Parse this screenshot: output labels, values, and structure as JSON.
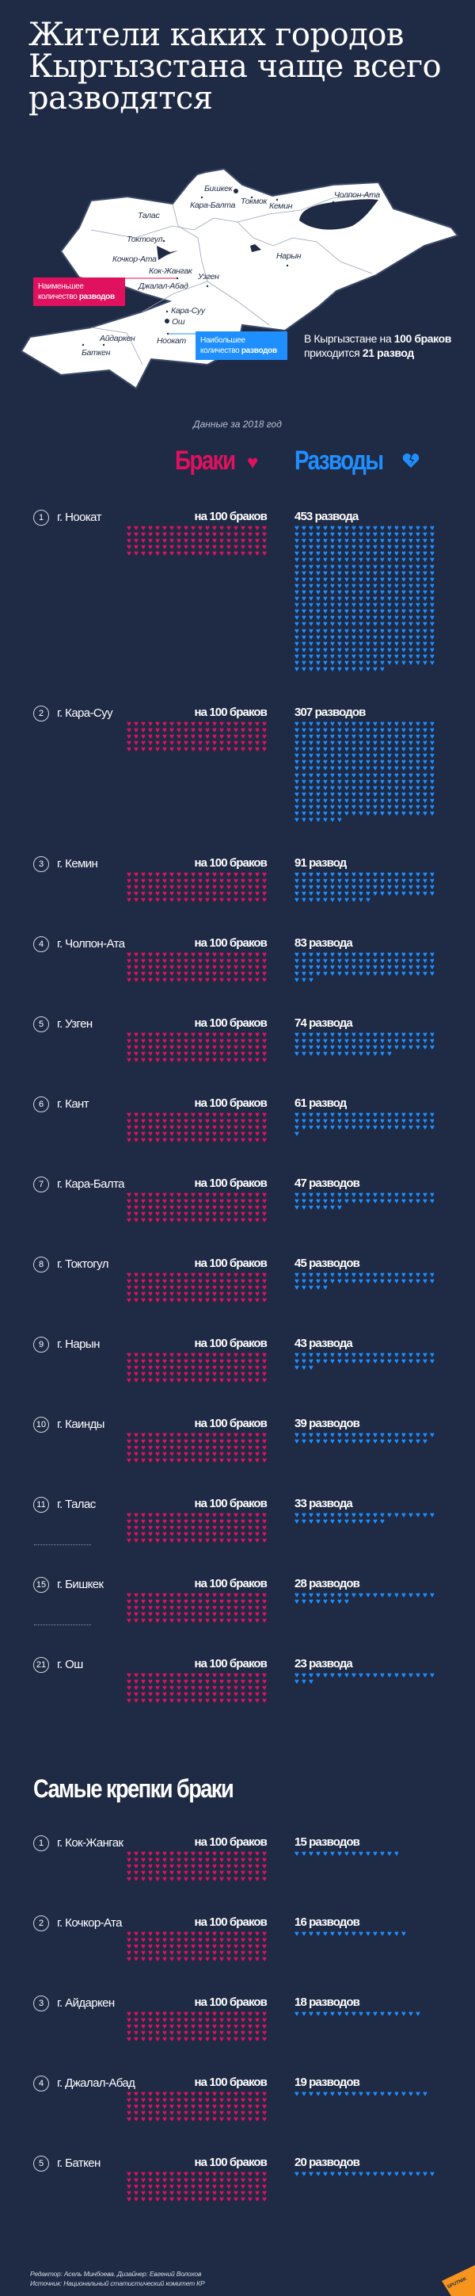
{
  "title": {
    "line1": "Жители каких городов",
    "line2": "Кыргызстана чаще всего",
    "line3": "разводятся"
  },
  "map": {
    "cities": [
      "Каинды",
      "Кант",
      "Бишкек",
      "Кара-Балта",
      "Токмок",
      "Кемин",
      "Чолпон-Ата",
      "Талас",
      "Токтогул",
      "Кочкор-Ата",
      "Кок-Жангак",
      "Узген",
      "Нарын",
      "Джалал-Абад",
      "Кара-Суу",
      "Ош",
      "Ноокат",
      "Айдаркен",
      "Баткен"
    ],
    "least_callout": {
      "text": "Наименьшее количество",
      "bold": "разводов"
    },
    "most_callout": {
      "text": "Наибольшее количество",
      "bold": "разводов"
    },
    "summary": {
      "pre": "В Кыргызстане на",
      "bold1": "100 браков",
      "pre2": "приходится",
      "bold2": "21 развод"
    }
  },
  "year_note": "Данные за 2018 год",
  "headers": {
    "marriages": "Браки",
    "divorces": "Разводы"
  },
  "colors": {
    "background": "#1f2a44",
    "marriages": "#e0115f",
    "divorces": "#1f8fff"
  },
  "icons": {
    "marriages": "heart-icon",
    "divorces": "broken-heart-icon"
  },
  "chart_data": {
    "type": "bar",
    "title": "Жители каких городов Кыргызстана чаще всего разводятся",
    "unit": "разводов на 100 браков",
    "most_divorces": [
      {
        "rank": "1",
        "city": "г. Ноокат",
        "marriages": 100,
        "marriages_label": "на 100 браков",
        "divorces": 453,
        "divorces_label": "453 развода"
      },
      {
        "rank": "2",
        "city": "г. Кара-Суу",
        "marriages": 100,
        "marriages_label": "на 100 браков",
        "divorces": 307,
        "divorces_label": "307 разводов"
      },
      {
        "rank": "3",
        "city": "г. Кемин",
        "marriages": 100,
        "marriages_label": "на 100 браков",
        "divorces": 91,
        "divorces_label": "91 развод"
      },
      {
        "rank": "4",
        "city": "г. Чолпон-Ата",
        "marriages": 100,
        "marriages_label": "на 100 браков",
        "divorces": 83,
        "divorces_label": "83 развода"
      },
      {
        "rank": "5",
        "city": "г. Узген",
        "marriages": 100,
        "marriages_label": "на 100 браков",
        "divorces": 74,
        "divorces_label": "74 развода"
      },
      {
        "rank": "6",
        "city": "г. Кант",
        "marriages": 100,
        "marriages_label": "на 100 браков",
        "divorces": 61,
        "divorces_label": "61 развод"
      },
      {
        "rank": "7",
        "city": "г. Кара-Балта",
        "marriages": 100,
        "marriages_label": "на 100 браков",
        "divorces": 47,
        "divorces_label": "47 разводов"
      },
      {
        "rank": "8",
        "city": "г. Токтогул",
        "marriages": 100,
        "marriages_label": "на 100 браков",
        "divorces": 45,
        "divorces_label": "45 разводов"
      },
      {
        "rank": "9",
        "city": "г. Нарын",
        "marriages": 100,
        "marriages_label": "на 100 браков",
        "divorces": 43,
        "divorces_label": "43 развода"
      },
      {
        "rank": "10",
        "city": "г. Каинды",
        "marriages": 100,
        "marriages_label": "на 100 браков",
        "divorces": 39,
        "divorces_label": "39 разводов"
      },
      {
        "rank": "11",
        "city": "г. Талас",
        "marriages": 100,
        "marriages_label": "на 100 браков",
        "divorces": 33,
        "divorces_label": "33 развода",
        "gap_after": true
      },
      {
        "rank": "15",
        "city": "г. Бишкек",
        "marriages": 100,
        "marriages_label": "на 100 браков",
        "divorces": 28,
        "divorces_label": "28 разводов",
        "gap_after": true
      },
      {
        "rank": "21",
        "city": "г. Ош",
        "marriages": 100,
        "marriages_label": "на 100 браков",
        "divorces": 23,
        "divorces_label": "23 развода"
      }
    ],
    "strongest_title": "Самые крепки браки",
    "strongest": [
      {
        "rank": "1",
        "city": "г. Кок-Жангак",
        "marriages": 100,
        "marriages_label": "на 100 браков",
        "divorces": 15,
        "divorces_label": "15 разводов"
      },
      {
        "rank": "2",
        "city": "г. Кочкор-Ата",
        "marriages": 100,
        "marriages_label": "на 100 браков",
        "divorces": 16,
        "divorces_label": "16 разводов"
      },
      {
        "rank": "3",
        "city": "г. Айдаркен",
        "marriages": 100,
        "marriages_label": "на 100 браков",
        "divorces": 18,
        "divorces_label": "18 разводов"
      },
      {
        "rank": "4",
        "city": "г. Джалал-Абад",
        "marriages": 100,
        "marriages_label": "на 100 браков",
        "divorces": 19,
        "divorces_label": "19 разводов"
      },
      {
        "rank": "5",
        "city": "г. Баткен",
        "marriages": 100,
        "marriages_label": "на 100 браков",
        "divorces": 20,
        "divorces_label": "20 разводов"
      }
    ]
  },
  "credits": {
    "editor": "Редактор: Асель Минбоева. Дизайнер: Евгений Волохов",
    "source": "Источник: Национальный статистический комитет КР"
  },
  "logo": "SPUTNIK"
}
